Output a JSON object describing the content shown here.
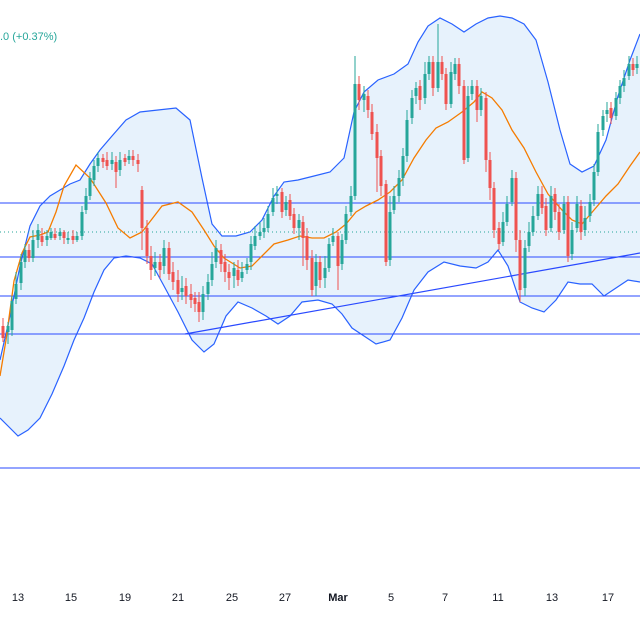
{
  "header": {
    "change_text": ".0 (+0.37%)"
  },
  "colors": {
    "up": "#26a69a",
    "down": "#ef5350",
    "band": "#2962ff",
    "band_fill": "#e3f0fb",
    "sma": "#f57c00",
    "hline": "#2949ff",
    "trendline": "#2949ff",
    "last_price": "#26a69a"
  },
  "chart_data": {
    "type": "candlestick",
    "x_ticks": [
      "13",
      "15",
      "19",
      "21",
      "25",
      "27",
      "Mar",
      "5",
      "7",
      "11",
      "13",
      "17"
    ],
    "y_range": [
      0,
      640
    ],
    "last_price": 232,
    "horizontal_levels": [
      203,
      257,
      296,
      334,
      468
    ],
    "trendline": {
      "x": [
        0,
        64
      ],
      "y": [
        334,
        253
      ]
    },
    "candles": [
      [
        -2,
        0.0,
        326,
        338,
        318,
        340
      ],
      [
        -1,
        0.5,
        333,
        328,
        324,
        346
      ],
      [
        0,
        1.5,
        330,
        300,
        296,
        335
      ],
      [
        0,
        3,
        300,
        281,
        270,
        302
      ],
      [
        0,
        4.5,
        282,
        254,
        250,
        287
      ],
      [
        0,
        6.5,
        257,
        236,
        226,
        262
      ],
      [
        1,
        8.5,
        242,
        239,
        233,
        245
      ],
      [
        1,
        10.5,
        240,
        238,
        231,
        243
      ],
      [
        1,
        12.5,
        239,
        236,
        228,
        242
      ],
      [
        2,
        14.5,
        236,
        206,
        201,
        239
      ],
      [
        2,
        16.5,
        205,
        174,
        166,
        209
      ],
      [
        2,
        18.5,
        176,
        157,
        150,
        178
      ],
      [
        3,
        20.0,
        160,
        158,
        152,
        168
      ],
      [
        3,
        21.5,
        160,
        190,
        142,
        196
      ],
      [
        3,
        23.0,
        190,
        235,
        186,
        245
      ],
      [
        3,
        24.5,
        236,
        266,
        228,
        274
      ],
      [
        4,
        26.0,
        265,
        272,
        256,
        282
      ],
      [
        4,
        27.5,
        270,
        280,
        264,
        290
      ],
      [
        4,
        29.0,
        281,
        298,
        276,
        306
      ],
      [
        4,
        30.5,
        298,
        286,
        280,
        304
      ],
      [
        5,
        32.0,
        287,
        256,
        246,
        292
      ],
      [
        5,
        33.5,
        258,
        266,
        250,
        275
      ],
      [
        5,
        35.0,
        267,
        272,
        258,
        282
      ],
      [
        5,
        36.5,
        272,
        254,
        242,
        276
      ],
      [
        6,
        38.0,
        255,
        236,
        228,
        260
      ],
      [
        6,
        39.5,
        236,
        214,
        196,
        240
      ],
      [
        6,
        41.0,
        214,
        196,
        184,
        218
      ],
      [
        6,
        42.5,
        196,
        210,
        188,
        218
      ],
      [
        7,
        44.0,
        211,
        225,
        205,
        232
      ],
      [
        7,
        45.5,
        225,
        242,
        218,
        250
      ],
      [
        7,
        47.0,
        243,
        268,
        236,
        278
      ],
      [
        7,
        48.5,
        268,
        296,
        262,
        304
      ],
      [
        8,
        50.0,
        296,
        272,
        266,
        300
      ],
      [
        8,
        51.5,
        273,
        236,
        230,
        276
      ],
      [
        8,
        53.0,
        236,
        210,
        198,
        240
      ],
      [
        8,
        54.5,
        210,
        172,
        166,
        214
      ],
      [
        9,
        56.0,
        172,
        84,
        56,
        176
      ],
      [
        9,
        57.5,
        86,
        118,
        80,
        134
      ],
      [
        9,
        59.0,
        118,
        180,
        112,
        264
      ],
      [
        9,
        60.5,
        181,
        200,
        174,
        208
      ],
      [
        10,
        62.0,
        202,
        168,
        162,
        206
      ],
      [
        10,
        63.5,
        170,
        74,
        66,
        174
      ]
    ],
    "sma_line": [
      [
        0,
        376
      ],
      [
        6,
        340
      ],
      [
        14,
        281
      ],
      [
        22,
        253
      ],
      [
        30,
        237
      ],
      [
        40,
        235
      ],
      [
        48,
        232
      ],
      [
        56,
        212
      ],
      [
        64,
        186
      ],
      [
        76,
        165
      ],
      [
        90,
        178
      ],
      [
        106,
        203
      ],
      [
        118,
        228
      ],
      [
        130,
        238
      ],
      [
        142,
        232
      ],
      [
        152,
        219
      ],
      [
        162,
        206
      ],
      [
        178,
        202
      ],
      [
        192,
        212
      ],
      [
        204,
        230
      ],
      [
        214,
        246
      ],
      [
        224,
        258
      ],
      [
        240,
        268
      ],
      [
        252,
        266
      ],
      [
        262,
        256
      ],
      [
        274,
        244
      ],
      [
        288,
        240
      ],
      [
        300,
        236
      ],
      [
        312,
        238
      ],
      [
        324,
        238
      ],
      [
        336,
        232
      ],
      [
        346,
        224
      ],
      [
        356,
        212
      ],
      [
        366,
        206
      ],
      [
        378,
        200
      ],
      [
        390,
        192
      ],
      [
        402,
        180
      ],
      [
        414,
        158
      ],
      [
        426,
        140
      ],
      [
        436,
        128
      ],
      [
        448,
        122
      ],
      [
        462,
        112
      ],
      [
        474,
        102
      ],
      [
        482,
        92
      ],
      [
        492,
        98
      ],
      [
        502,
        110
      ],
      [
        512,
        130
      ],
      [
        524,
        148
      ],
      [
        536,
        172
      ],
      [
        548,
        194
      ],
      [
        562,
        210
      ],
      [
        572,
        220
      ],
      [
        582,
        224
      ],
      [
        594,
        210
      ],
      [
        606,
        196
      ],
      [
        618,
        184
      ],
      [
        630,
        166
      ],
      [
        640,
        152
      ]
    ],
    "upper_band": [
      [
        0,
        360
      ],
      [
        10,
        316
      ],
      [
        20,
        266
      ],
      [
        30,
        226
      ],
      [
        40,
        206
      ],
      [
        50,
        196
      ],
      [
        60,
        190
      ],
      [
        70,
        184
      ],
      [
        80,
        180
      ],
      [
        90,
        164
      ],
      [
        100,
        150
      ],
      [
        112,
        136
      ],
      [
        126,
        120
      ],
      [
        140,
        112
      ],
      [
        158,
        110
      ],
      [
        176,
        108
      ],
      [
        190,
        120
      ],
      [
        202,
        178
      ],
      [
        212,
        224
      ],
      [
        222,
        236
      ],
      [
        236,
        236
      ],
      [
        250,
        232
      ],
      [
        262,
        220
      ],
      [
        274,
        196
      ],
      [
        284,
        182
      ],
      [
        298,
        180
      ],
      [
        314,
        176
      ],
      [
        330,
        172
      ],
      [
        344,
        158
      ],
      [
        354,
        112
      ],
      [
        364,
        92
      ],
      [
        378,
        80
      ],
      [
        394,
        74
      ],
      [
        408,
        64
      ],
      [
        418,
        42
      ],
      [
        428,
        26
      ],
      [
        440,
        18
      ],
      [
        452,
        24
      ],
      [
        464,
        32
      ],
      [
        476,
        24
      ],
      [
        488,
        18
      ],
      [
        500,
        16
      ],
      [
        512,
        18
      ],
      [
        524,
        24
      ],
      [
        536,
        40
      ],
      [
        548,
        82
      ],
      [
        560,
        130
      ],
      [
        570,
        164
      ],
      [
        582,
        172
      ],
      [
        594,
        166
      ],
      [
        606,
        140
      ],
      [
        618,
        96
      ],
      [
        630,
        60
      ],
      [
        640,
        34
      ]
    ],
    "lower_band": [
      [
        0,
        418
      ],
      [
        8,
        426
      ],
      [
        18,
        436
      ],
      [
        28,
        430
      ],
      [
        40,
        418
      ],
      [
        52,
        394
      ],
      [
        64,
        366
      ],
      [
        74,
        340
      ],
      [
        84,
        318
      ],
      [
        94,
        292
      ],
      [
        104,
        270
      ],
      [
        114,
        258
      ],
      [
        126,
        256
      ],
      [
        140,
        258
      ],
      [
        152,
        264
      ],
      [
        164,
        286
      ],
      [
        178,
        312
      ],
      [
        192,
        340
      ],
      [
        204,
        352
      ],
      [
        214,
        344
      ],
      [
        226,
        316
      ],
      [
        238,
        302
      ],
      [
        252,
        308
      ],
      [
        266,
        316
      ],
      [
        278,
        324
      ],
      [
        290,
        316
      ],
      [
        302,
        302
      ],
      [
        318,
        300
      ],
      [
        332,
        304
      ],
      [
        342,
        314
      ],
      [
        352,
        328
      ],
      [
        364,
        336
      ],
      [
        376,
        344
      ],
      [
        390,
        340
      ],
      [
        402,
        318
      ],
      [
        414,
        290
      ],
      [
        428,
        272
      ],
      [
        444,
        262
      ],
      [
        460,
        266
      ],
      [
        476,
        268
      ],
      [
        488,
        262
      ],
      [
        498,
        250
      ],
      [
        508,
        266
      ],
      [
        520,
        302
      ],
      [
        532,
        308
      ],
      [
        544,
        312
      ],
      [
        556,
        300
      ],
      [
        568,
        282
      ],
      [
        580,
        284
      ],
      [
        592,
        284
      ],
      [
        604,
        296
      ],
      [
        616,
        288
      ],
      [
        628,
        280
      ],
      [
        640,
        282
      ]
    ]
  }
}
